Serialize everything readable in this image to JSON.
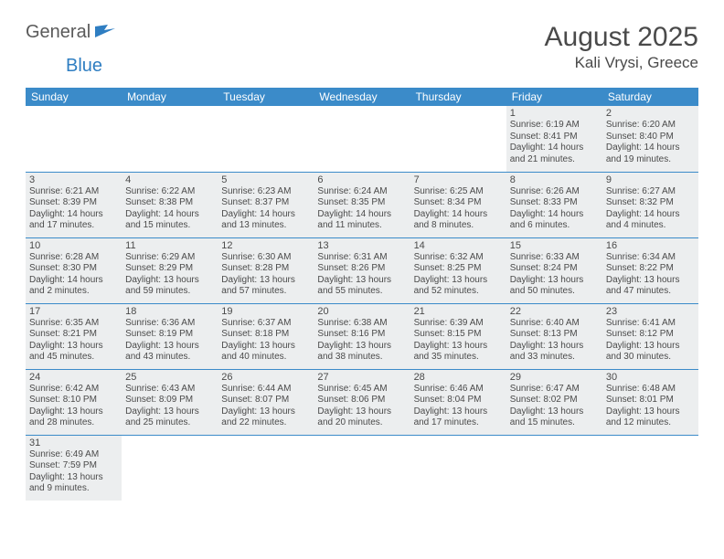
{
  "logo": {
    "general": "General",
    "blue": "Blue"
  },
  "title": "August 2025",
  "location": "Kali Vrysi, Greece",
  "colors": {
    "header_bg": "#3b8bc9",
    "header_text": "#ffffff",
    "shaded_bg": "#eceeef",
    "divider": "#3b8bc9",
    "text": "#4a4a4a",
    "logo_gray": "#5a5a5a",
    "logo_blue": "#2f7ec2"
  },
  "weekdays": [
    "Sunday",
    "Monday",
    "Tuesday",
    "Wednesday",
    "Thursday",
    "Friday",
    "Saturday"
  ],
  "weeks": [
    [
      {
        "blank": true
      },
      {
        "blank": true
      },
      {
        "blank": true
      },
      {
        "blank": true
      },
      {
        "blank": true
      },
      {
        "n": "1",
        "sr": "6:19 AM",
        "ss": "8:41 PM",
        "dl": "14 hours and 21 minutes."
      },
      {
        "n": "2",
        "sr": "6:20 AM",
        "ss": "8:40 PM",
        "dl": "14 hours and 19 minutes."
      }
    ],
    [
      {
        "n": "3",
        "sr": "6:21 AM",
        "ss": "8:39 PM",
        "dl": "14 hours and 17 minutes."
      },
      {
        "n": "4",
        "sr": "6:22 AM",
        "ss": "8:38 PM",
        "dl": "14 hours and 15 minutes."
      },
      {
        "n": "5",
        "sr": "6:23 AM",
        "ss": "8:37 PM",
        "dl": "14 hours and 13 minutes."
      },
      {
        "n": "6",
        "sr": "6:24 AM",
        "ss": "8:35 PM",
        "dl": "14 hours and 11 minutes."
      },
      {
        "n": "7",
        "sr": "6:25 AM",
        "ss": "8:34 PM",
        "dl": "14 hours and 8 minutes."
      },
      {
        "n": "8",
        "sr": "6:26 AM",
        "ss": "8:33 PM",
        "dl": "14 hours and 6 minutes."
      },
      {
        "n": "9",
        "sr": "6:27 AM",
        "ss": "8:32 PM",
        "dl": "14 hours and 4 minutes."
      }
    ],
    [
      {
        "n": "10",
        "sr": "6:28 AM",
        "ss": "8:30 PM",
        "dl": "14 hours and 2 minutes."
      },
      {
        "n": "11",
        "sr": "6:29 AM",
        "ss": "8:29 PM",
        "dl": "13 hours and 59 minutes."
      },
      {
        "n": "12",
        "sr": "6:30 AM",
        "ss": "8:28 PM",
        "dl": "13 hours and 57 minutes."
      },
      {
        "n": "13",
        "sr": "6:31 AM",
        "ss": "8:26 PM",
        "dl": "13 hours and 55 minutes."
      },
      {
        "n": "14",
        "sr": "6:32 AM",
        "ss": "8:25 PM",
        "dl": "13 hours and 52 minutes."
      },
      {
        "n": "15",
        "sr": "6:33 AM",
        "ss": "8:24 PM",
        "dl": "13 hours and 50 minutes."
      },
      {
        "n": "16",
        "sr": "6:34 AM",
        "ss": "8:22 PM",
        "dl": "13 hours and 47 minutes."
      }
    ],
    [
      {
        "n": "17",
        "sr": "6:35 AM",
        "ss": "8:21 PM",
        "dl": "13 hours and 45 minutes."
      },
      {
        "n": "18",
        "sr": "6:36 AM",
        "ss": "8:19 PM",
        "dl": "13 hours and 43 minutes."
      },
      {
        "n": "19",
        "sr": "6:37 AM",
        "ss": "8:18 PM",
        "dl": "13 hours and 40 minutes."
      },
      {
        "n": "20",
        "sr": "6:38 AM",
        "ss": "8:16 PM",
        "dl": "13 hours and 38 minutes."
      },
      {
        "n": "21",
        "sr": "6:39 AM",
        "ss": "8:15 PM",
        "dl": "13 hours and 35 minutes."
      },
      {
        "n": "22",
        "sr": "6:40 AM",
        "ss": "8:13 PM",
        "dl": "13 hours and 33 minutes."
      },
      {
        "n": "23",
        "sr": "6:41 AM",
        "ss": "8:12 PM",
        "dl": "13 hours and 30 minutes."
      }
    ],
    [
      {
        "n": "24",
        "sr": "6:42 AM",
        "ss": "8:10 PM",
        "dl": "13 hours and 28 minutes."
      },
      {
        "n": "25",
        "sr": "6:43 AM",
        "ss": "8:09 PM",
        "dl": "13 hours and 25 minutes."
      },
      {
        "n": "26",
        "sr": "6:44 AM",
        "ss": "8:07 PM",
        "dl": "13 hours and 22 minutes."
      },
      {
        "n": "27",
        "sr": "6:45 AM",
        "ss": "8:06 PM",
        "dl": "13 hours and 20 minutes."
      },
      {
        "n": "28",
        "sr": "6:46 AM",
        "ss": "8:04 PM",
        "dl": "13 hours and 17 minutes."
      },
      {
        "n": "29",
        "sr": "6:47 AM",
        "ss": "8:02 PM",
        "dl": "13 hours and 15 minutes."
      },
      {
        "n": "30",
        "sr": "6:48 AM",
        "ss": "8:01 PM",
        "dl": "13 hours and 12 minutes."
      }
    ],
    [
      {
        "n": "31",
        "sr": "6:49 AM",
        "ss": "7:59 PM",
        "dl": "13 hours and 9 minutes."
      },
      {
        "blank": true
      },
      {
        "blank": true
      },
      {
        "blank": true
      },
      {
        "blank": true
      },
      {
        "blank": true
      },
      {
        "blank": true
      }
    ]
  ],
  "labels": {
    "sunrise": "Sunrise:",
    "sunset": "Sunset:",
    "daylight": "Daylight:"
  }
}
